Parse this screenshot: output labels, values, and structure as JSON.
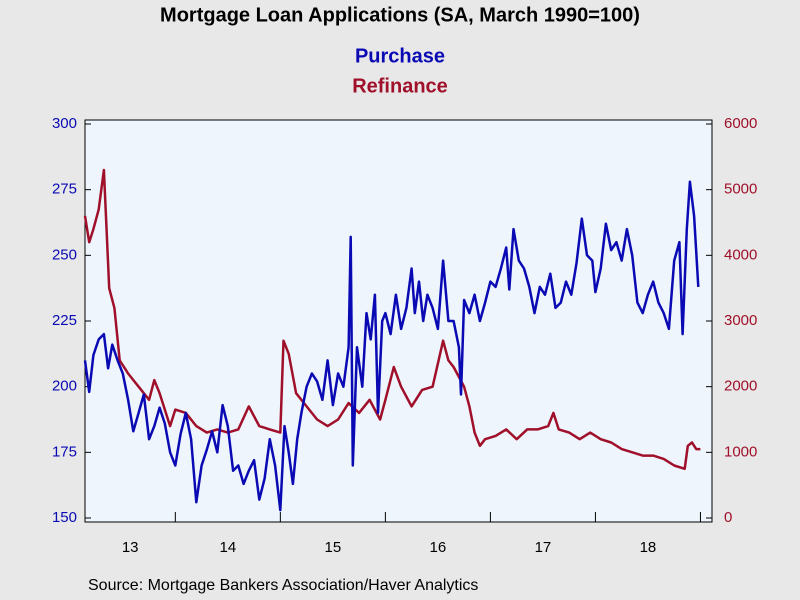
{
  "chart_data": {
    "type": "line",
    "title": "Mortgage Loan Applications (SA, March 1990=100)",
    "source": "Source:  Mortgage Bankers Association/Haver Analytics",
    "xlim": [
      2013.14,
      2019.11
    ],
    "xticks": [
      2014,
      2015,
      2016,
      2017,
      2018,
      2019
    ],
    "xtick_labels": [
      {
        "value": 2013,
        "label": "13"
      },
      {
        "value": 2014,
        "label": "14"
      },
      {
        "value": 2015,
        "label": "15"
      },
      {
        "value": 2016,
        "label": "16"
      },
      {
        "value": 2017,
        "label": "17"
      },
      {
        "value": 2018,
        "label": "18"
      }
    ],
    "ylim": [
      150,
      300
    ],
    "yticks": [
      150,
      175,
      200,
      225,
      250,
      275,
      300
    ],
    "y2lim": [
      0,
      6000
    ],
    "y2ticks": [
      0,
      1000,
      2000,
      3000,
      4000,
      5000,
      6000
    ],
    "series": [
      {
        "name": "Purchase",
        "color": "#0a0ab4",
        "axis": "y",
        "x": [
          2013.14,
          2013.18,
          2013.22,
          2013.27,
          2013.32,
          2013.36,
          2013.4,
          2013.45,
          2013.5,
          2013.55,
          2013.6,
          2013.65,
          2013.7,
          2013.75,
          2013.8,
          2013.85,
          2013.9,
          2013.95,
          2014.0,
          2014.05,
          2014.1,
          2014.15,
          2014.2,
          2014.25,
          2014.3,
          2014.35,
          2014.4,
          2014.45,
          2014.5,
          2014.55,
          2014.6,
          2014.65,
          2014.7,
          2014.75,
          2014.8,
          2014.85,
          2014.9,
          2014.95,
          2015.0,
          2015.04,
          2015.08,
          2015.12,
          2015.16,
          2015.2,
          2015.25,
          2015.3,
          2015.35,
          2015.4,
          2015.45,
          2015.5,
          2015.55,
          2015.6,
          2015.65,
          2015.67,
          2015.69,
          2015.73,
          2015.78,
          2015.82,
          2015.86,
          2015.9,
          2015.93,
          2015.97,
          2016.0,
          2016.05,
          2016.1,
          2016.15,
          2016.2,
          2016.25,
          2016.28,
          2016.32,
          2016.36,
          2016.4,
          2016.45,
          2016.5,
          2016.55,
          2016.6,
          2016.65,
          2016.7,
          2016.72,
          2016.75,
          2016.8,
          2016.85,
          2016.9,
          2016.95,
          2017.0,
          2017.05,
          2017.1,
          2017.15,
          2017.18,
          2017.22,
          2017.27,
          2017.32,
          2017.37,
          2017.42,
          2017.47,
          2017.52,
          2017.57,
          2017.62,
          2017.67,
          2017.72,
          2017.77,
          2017.82,
          2017.87,
          2017.92,
          2017.97,
          2018.0,
          2018.05,
          2018.1,
          2018.15,
          2018.2,
          2018.25,
          2018.3,
          2018.35,
          2018.4,
          2018.45,
          2018.5,
          2018.55,
          2018.6,
          2018.65,
          2018.7,
          2018.75,
          2018.8,
          2018.83,
          2018.87,
          2018.9,
          2018.94,
          2018.98
        ],
        "values": [
          210,
          198,
          212,
          218,
          220,
          207,
          216,
          210,
          205,
          195,
          183,
          190,
          197,
          180,
          185,
          192,
          186,
          175,
          170,
          182,
          190,
          180,
          156,
          170,
          176,
          183,
          175,
          193,
          185,
          168,
          170,
          163,
          168,
          172,
          157,
          165,
          180,
          170,
          153,
          185,
          175,
          163,
          180,
          190,
          200,
          205,
          202,
          195,
          210,
          193,
          205,
          200,
          215,
          257,
          170,
          215,
          200,
          228,
          218,
          235,
          190,
          225,
          228,
          220,
          235,
          222,
          230,
          245,
          228,
          240,
          225,
          235,
          230,
          222,
          248,
          225,
          225,
          215,
          197,
          233,
          228,
          235,
          225,
          232,
          240,
          238,
          245,
          253,
          237,
          260,
          248,
          245,
          238,
          228,
          238,
          235,
          243,
          230,
          232,
          240,
          235,
          247,
          264,
          250,
          248,
          236,
          245,
          262,
          252,
          255,
          248,
          260,
          250,
          232,
          228,
          235,
          240,
          232,
          228,
          222,
          248,
          255,
          220,
          260,
          278,
          265,
          238
        ]
      },
      {
        "name": "Refinance",
        "color": "#a0102a",
        "axis": "y2",
        "x": [
          2013.14,
          2013.18,
          2013.22,
          2013.27,
          2013.32,
          2013.37,
          2013.42,
          2013.47,
          2013.55,
          2013.65,
          2013.75,
          2013.8,
          2013.85,
          2013.95,
          2014.0,
          2014.1,
          2014.2,
          2014.3,
          2014.4,
          2014.5,
          2014.6,
          2014.7,
          2014.8,
          2014.9,
          2015.0,
          2015.03,
          2015.08,
          2015.15,
          2015.25,
          2015.35,
          2015.45,
          2015.55,
          2015.65,
          2015.75,
          2015.85,
          2015.95,
          2016.0,
          2016.08,
          2016.15,
          2016.25,
          2016.35,
          2016.45,
          2016.55,
          2016.6,
          2016.65,
          2016.75,
          2016.8,
          2016.85,
          2016.9,
          2016.95,
          2017.05,
          2017.15,
          2017.25,
          2017.35,
          2017.45,
          2017.55,
          2017.6,
          2017.65,
          2017.75,
          2017.85,
          2017.95,
          2018.05,
          2018.15,
          2018.25,
          2018.35,
          2018.45,
          2018.55,
          2018.65,
          2018.75,
          2018.85,
          2018.88,
          2018.92,
          2018.96,
          2019.0
        ],
        "values": [
          4600,
          4200,
          4400,
          4700,
          5300,
          3500,
          3200,
          2400,
          2200,
          2000,
          1800,
          2100,
          1900,
          1400,
          1650,
          1600,
          1400,
          1300,
          1350,
          1300,
          1350,
          1700,
          1400,
          1350,
          1300,
          2700,
          2500,
          1900,
          1700,
          1500,
          1400,
          1500,
          1750,
          1600,
          1800,
          1500,
          1800,
          2300,
          2000,
          1700,
          1950,
          2000,
          2700,
          2400,
          2300,
          2000,
          1700,
          1300,
          1100,
          1200,
          1250,
          1350,
          1200,
          1350,
          1350,
          1400,
          1600,
          1350,
          1300,
          1200,
          1300,
          1200,
          1150,
          1050,
          1000,
          950,
          950,
          900,
          800,
          750,
          1100,
          1150,
          1050,
          1050
        ]
      }
    ]
  }
}
